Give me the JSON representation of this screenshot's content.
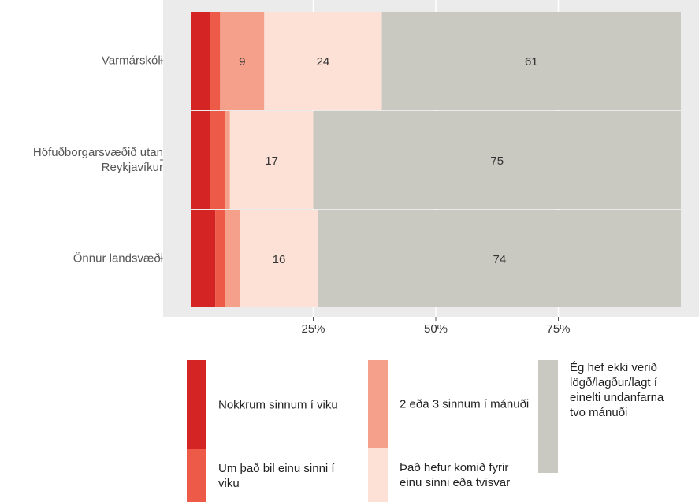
{
  "chart_data": {
    "type": "stacked_bar_horizontal",
    "categories": [
      "Varmárskóli",
      "Höfuðborgarsvæðið utan Reykjavíkur",
      "Önnur landsvæði"
    ],
    "series": [
      {
        "name": "Nokkrum sinnum í viku",
        "color": "#d42424",
        "values": [
          4,
          4,
          5
        ],
        "value_labels": [
          null,
          null,
          null
        ]
      },
      {
        "name": "Um það bil einu sinni í viku",
        "color": "#ee5a48",
        "values": [
          2,
          3,
          2
        ],
        "value_labels": [
          null,
          null,
          null
        ]
      },
      {
        "name": "2 eða 3 sinnum í mánuði",
        "color": "#f4a08a",
        "values": [
          9,
          1,
          3
        ],
        "value_labels": [
          9,
          null,
          null
        ]
      },
      {
        "name": "Það hefur komið fyrir einu sinni eða tvisvar",
        "color": "#fde1d6",
        "values": [
          24,
          17,
          16
        ],
        "value_labels": [
          24,
          17,
          16
        ]
      },
      {
        "name": "Ég hef ekki verið lögð/lagður/lagt í einelti undanfarna tvo mánuði",
        "color": "#c9c9c1",
        "values": [
          61,
          75,
          74
        ],
        "value_labels": [
          61,
          75,
          74
        ]
      }
    ],
    "xlim": [
      0,
      100
    ],
    "xticks": [
      {
        "value": 25,
        "label": "25%"
      },
      {
        "value": 50,
        "label": "50%"
      },
      {
        "value": 75,
        "label": "75%"
      }
    ],
    "grid": true
  }
}
